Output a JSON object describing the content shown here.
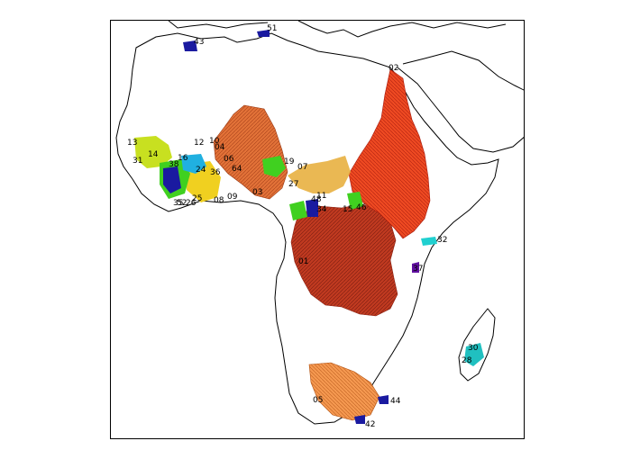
{
  "map": {
    "title": "",
    "colors": {
      "coast": "#000000",
      "frame": "#000000",
      "congo": "#b8321a",
      "nile": "#e8421f",
      "niger": "#e06a30",
      "chad": "#e8b040",
      "orange": "#f08a40",
      "senegal": "#c8e020",
      "volta": "#f0d020",
      "green": "#40d020",
      "cyan": "#20d0d0",
      "blue": "#1a1aa0",
      "teal": "#20c0c0",
      "purple": "#6010a0"
    },
    "labels": [
      {
        "id": "51",
        "text": "51"
      },
      {
        "id": "43",
        "text": "43"
      },
      {
        "id": "02",
        "text": "02"
      },
      {
        "id": "13",
        "text": "13"
      },
      {
        "id": "10",
        "text": "10"
      },
      {
        "id": "12",
        "text": "12"
      },
      {
        "id": "04",
        "text": "04"
      },
      {
        "id": "06",
        "text": "06"
      },
      {
        "id": "16",
        "text": "16"
      },
      {
        "id": "14",
        "text": "14"
      },
      {
        "id": "38",
        "text": "38"
      },
      {
        "id": "24",
        "text": "24"
      },
      {
        "id": "36",
        "text": "36"
      },
      {
        "id": "64",
        "text": "64"
      },
      {
        "id": "19",
        "text": "19"
      },
      {
        "id": "07",
        "text": "07"
      },
      {
        "id": "27",
        "text": "27"
      },
      {
        "id": "03",
        "text": "03"
      },
      {
        "id": "25",
        "text": "25"
      },
      {
        "id": "09",
        "text": "09"
      },
      {
        "id": "08",
        "text": "08"
      },
      {
        "id": "11",
        "text": "11"
      },
      {
        "id": "48",
        "text": "48"
      },
      {
        "id": "34",
        "text": "34"
      },
      {
        "id": "15",
        "text": "15"
      },
      {
        "id": "46",
        "text": "46"
      },
      {
        "id": "32",
        "text": "32"
      },
      {
        "id": "01",
        "text": "01"
      },
      {
        "id": "37",
        "text": "37"
      },
      {
        "id": "30",
        "text": "30"
      },
      {
        "id": "28",
        "text": "28"
      },
      {
        "id": "05",
        "text": "05"
      },
      {
        "id": "44",
        "text": "44"
      },
      {
        "id": "42",
        "text": "42"
      },
      {
        "id": "31",
        "text": "31"
      },
      {
        "id": "26",
        "text": "26"
      },
      {
        "id": "35",
        "text": "35"
      },
      {
        "id": "52",
        "text": "52"
      }
    ]
  }
}
